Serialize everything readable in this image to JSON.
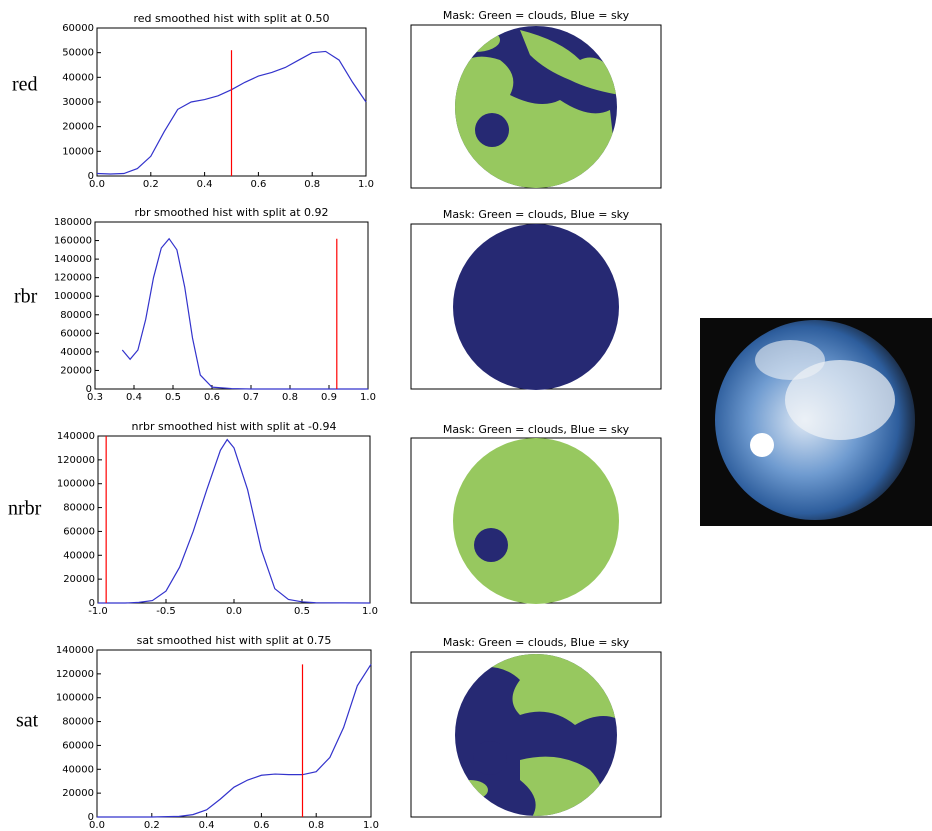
{
  "row_labels": [
    "red",
    "rbr",
    "nrbr",
    "sat"
  ],
  "mask_titles": [
    "Mask: Green = clouds, Blue = sky",
    "Mask: Green = clouds, Blue = sky",
    "Mask: Green = clouds, Blue = sky",
    "Mask: Green = clouds, Blue = sky"
  ],
  "chart_data": [
    {
      "type": "line",
      "title": "red smoothed hist with split at 0.50",
      "color": "#3333cc",
      "x": [
        0,
        0.05,
        0.1,
        0.15,
        0.2,
        0.25,
        0.3,
        0.35,
        0.4,
        0.45,
        0.5,
        0.55,
        0.6,
        0.65,
        0.7,
        0.75,
        0.8,
        0.85,
        0.9,
        0.95,
        1.0
      ],
      "values": [
        1000,
        800,
        1000,
        3000,
        8000,
        18000,
        27000,
        30000,
        31000,
        32500,
        35000,
        38000,
        40500,
        42000,
        44000,
        47000,
        50000,
        50500,
        47000,
        38000,
        30000
      ],
      "xlim": [
        0,
        1
      ],
      "ylim": [
        0,
        60000
      ],
      "xticks": [
        {
          "value": 0,
          "label": "0.0"
        },
        {
          "value": 0.2,
          "label": "0.2"
        },
        {
          "value": 0.4,
          "label": "0.4"
        },
        {
          "value": 0.6,
          "label": "0.6"
        },
        {
          "value": 0.8,
          "label": "0.8"
        },
        {
          "value": 1,
          "label": "1.0"
        }
      ],
      "yticks": [
        0,
        10000,
        20000,
        30000,
        40000,
        50000,
        60000
      ],
      "vline": {
        "x": 0.5,
        "ymax": 51000,
        "color": "#ff0000"
      }
    },
    {
      "type": "line",
      "title": "rbr smoothed hist with split at 0.92",
      "color": "#3333cc",
      "x": [
        0.37,
        0.39,
        0.41,
        0.43,
        0.45,
        0.47,
        0.49,
        0.51,
        0.53,
        0.55,
        0.57,
        0.6,
        0.65,
        0.7,
        0.8,
        0.9,
        1.0
      ],
      "values": [
        42000,
        32000,
        42000,
        75000,
        120000,
        152000,
        162000,
        150000,
        110000,
        55000,
        15000,
        2000,
        500,
        0,
        0,
        0,
        0
      ],
      "xlim": [
        0.3,
        1
      ],
      "ylim": [
        0,
        180000
      ],
      "xticks": [
        0.3,
        0.4,
        0.5,
        0.6,
        0.7,
        0.8,
        0.9,
        {
          "value": 1,
          "label": "1.0"
        }
      ],
      "yticks": [
        0,
        20000,
        40000,
        60000,
        80000,
        100000,
        120000,
        140000,
        160000,
        180000
      ],
      "vline": {
        "x": 0.92,
        "ymax": 162000,
        "color": "#ff0000"
      }
    },
    {
      "type": "line",
      "title": "nrbr smoothed hist with split at -0.94",
      "color": "#3333cc",
      "x": [
        -1,
        -0.8,
        -0.7,
        -0.6,
        -0.5,
        -0.4,
        -0.3,
        -0.2,
        -0.1,
        -0.05,
        0,
        0.1,
        0.2,
        0.3,
        0.4,
        0.5,
        0.6,
        1.0
      ],
      "values": [
        0,
        0,
        500,
        2000,
        10000,
        30000,
        60000,
        95000,
        128000,
        137000,
        130000,
        95000,
        45000,
        12000,
        3000,
        1000,
        200,
        0
      ],
      "xlim": [
        -1,
        1
      ],
      "ylim": [
        0,
        140000
      ],
      "xticks": [
        {
          "value": -1,
          "label": "-1.0"
        },
        -0.5,
        {
          "value": 0,
          "label": "0.0"
        },
        0.5,
        {
          "value": 1,
          "label": "1.0"
        }
      ],
      "yticks": [
        0,
        20000,
        40000,
        60000,
        80000,
        100000,
        120000,
        140000
      ],
      "vline": {
        "x": -0.94,
        "ymax": 140000,
        "color": "#ff0000"
      }
    },
    {
      "type": "line",
      "title": "sat smoothed hist with split at 0.75",
      "color": "#3333cc",
      "x": [
        0,
        0.1,
        0.2,
        0.3,
        0.35,
        0.4,
        0.45,
        0.5,
        0.55,
        0.6,
        0.65,
        0.7,
        0.75,
        0.8,
        0.85,
        0.9,
        0.95,
        1.0
      ],
      "values": [
        0,
        0,
        0,
        500,
        2000,
        6000,
        15000,
        25000,
        31000,
        35000,
        36000,
        35500,
        35500,
        38000,
        50000,
        75000,
        110000,
        128000
      ],
      "xlim": [
        0,
        1
      ],
      "ylim": [
        0,
        140000
      ],
      "xticks": [
        {
          "value": 0,
          "label": "0.0"
        },
        {
          "value": 0.2,
          "label": "0.2"
        },
        {
          "value": 0.4,
          "label": "0.4"
        },
        {
          "value": 0.6,
          "label": "0.6"
        },
        {
          "value": 0.8,
          "label": "0.8"
        },
        {
          "value": 1,
          "label": "1.0"
        }
      ],
      "yticks": [
        0,
        20000,
        40000,
        60000,
        80000,
        100000,
        120000,
        140000
      ],
      "vline": {
        "x": 0.75,
        "ymax": 128000,
        "color": "#ff0000"
      }
    }
  ]
}
